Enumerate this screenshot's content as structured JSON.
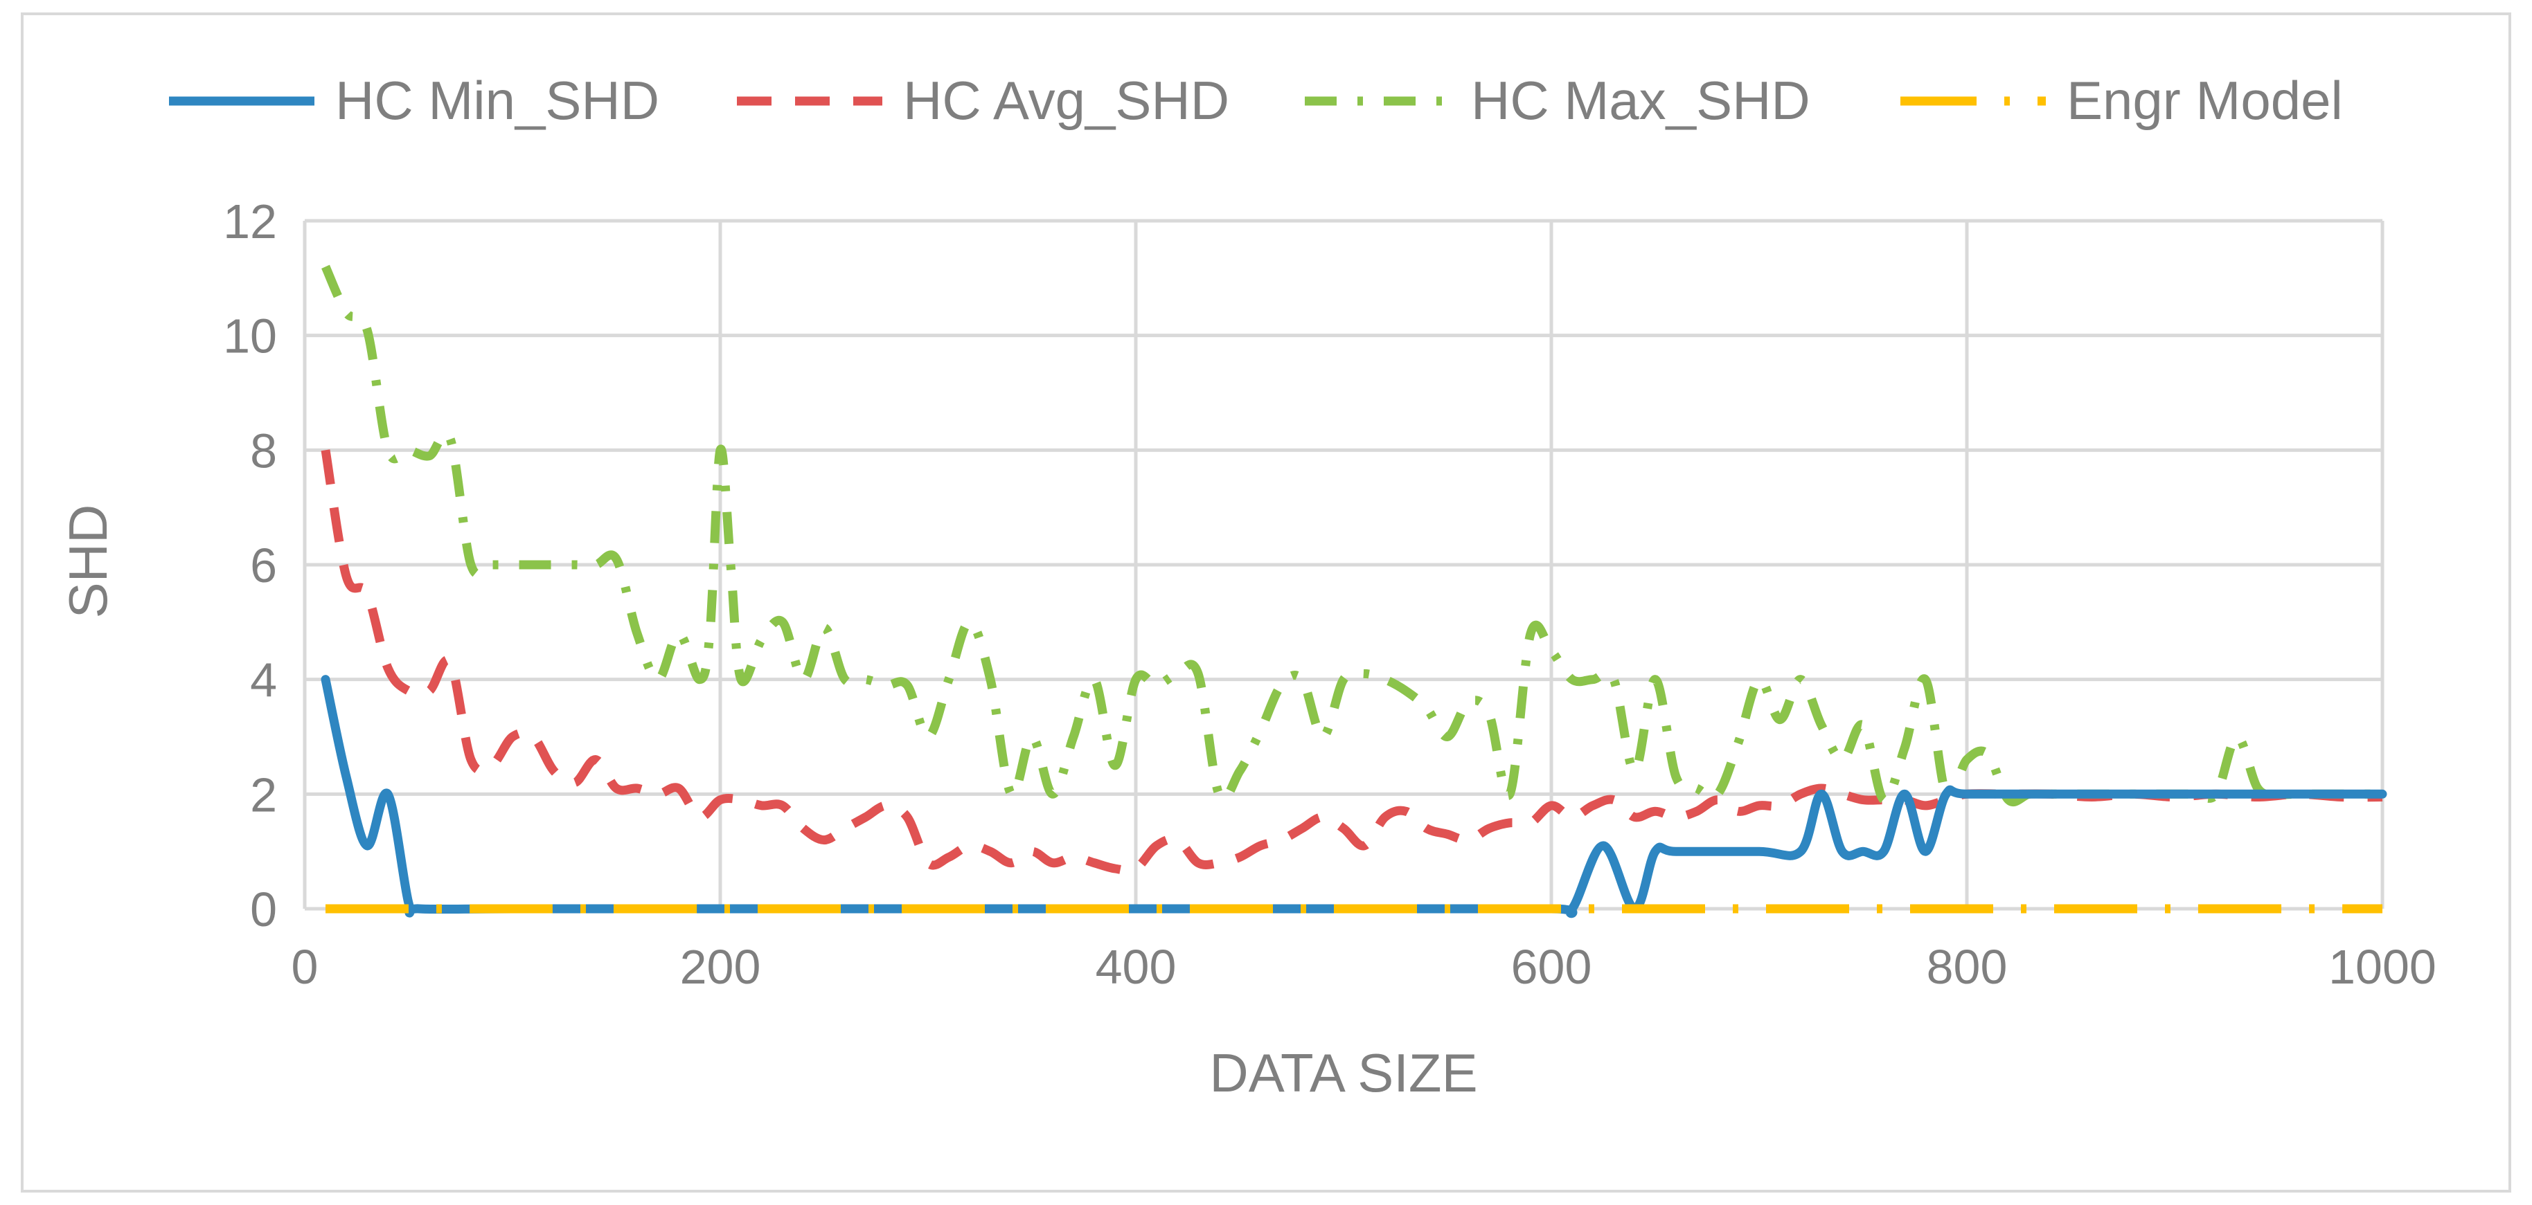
{
  "chart_data": {
    "type": "line",
    "title": "",
    "xlabel": "DATA SIZE",
    "ylabel": "SHD",
    "xlim": [
      0,
      1000
    ],
    "ylim": [
      0,
      12
    ],
    "xticks": [
      0,
      200,
      400,
      600,
      800,
      1000
    ],
    "yticks": [
      0,
      2,
      4,
      6,
      8,
      10,
      12
    ],
    "grid": true,
    "legend_position": "top",
    "series": [
      {
        "name": "HC Min_SHD",
        "color": "#2e86c1",
        "style": "solid",
        "points": [
          [
            10,
            4
          ],
          [
            20,
            2.3
          ],
          [
            30,
            1.1
          ],
          [
            40,
            2
          ],
          [
            50,
            0.1
          ],
          [
            55,
            0
          ],
          [
            100,
            0
          ],
          [
            200,
            0
          ],
          [
            300,
            0
          ],
          [
            400,
            0
          ],
          [
            500,
            0
          ],
          [
            600,
            0
          ],
          [
            610,
            0
          ],
          [
            625,
            1.1
          ],
          [
            640,
            0
          ],
          [
            650,
            1
          ],
          [
            660,
            1
          ],
          [
            700,
            1
          ],
          [
            720,
            1
          ],
          [
            730,
            2
          ],
          [
            740,
            1
          ],
          [
            750,
            1
          ],
          [
            760,
            1
          ],
          [
            770,
            2
          ],
          [
            780,
            1
          ],
          [
            790,
            2
          ],
          [
            800,
            2
          ],
          [
            850,
            2
          ],
          [
            900,
            2
          ],
          [
            950,
            2
          ],
          [
            1000,
            2
          ]
        ]
      },
      {
        "name": "HC Avg_SHD",
        "color": "#e05252",
        "style": "dashed",
        "points": [
          [
            10,
            8
          ],
          [
            20,
            5.8
          ],
          [
            30,
            5.5
          ],
          [
            40,
            4.2
          ],
          [
            50,
            3.8
          ],
          [
            60,
            3.8
          ],
          [
            70,
            4.3
          ],
          [
            80,
            2.6
          ],
          [
            90,
            2.5
          ],
          [
            100,
            3
          ],
          [
            110,
            3
          ],
          [
            120,
            2.4
          ],
          [
            130,
            2.2
          ],
          [
            140,
            2.6
          ],
          [
            150,
            2.1
          ],
          [
            160,
            2.1
          ],
          [
            170,
            2
          ],
          [
            180,
            2.1
          ],
          [
            190,
            1.6
          ],
          [
            200,
            1.9
          ],
          [
            210,
            1.9
          ],
          [
            220,
            1.8
          ],
          [
            230,
            1.8
          ],
          [
            240,
            1.4
          ],
          [
            250,
            1.2
          ],
          [
            260,
            1.4
          ],
          [
            270,
            1.6
          ],
          [
            280,
            1.8
          ],
          [
            290,
            1.6
          ],
          [
            300,
            0.8
          ],
          [
            310,
            0.9
          ],
          [
            320,
            1.1
          ],
          [
            330,
            1
          ],
          [
            340,
            0.8
          ],
          [
            350,
            1
          ],
          [
            360,
            0.8
          ],
          [
            370,
            0.9
          ],
          [
            380,
            0.8
          ],
          [
            390,
            0.7
          ],
          [
            400,
            0.7
          ],
          [
            410,
            1.1
          ],
          [
            420,
            1.2
          ],
          [
            430,
            0.8
          ],
          [
            440,
            0.8
          ],
          [
            450,
            0.9
          ],
          [
            460,
            1.1
          ],
          [
            470,
            1.2
          ],
          [
            480,
            1.4
          ],
          [
            490,
            1.6
          ],
          [
            500,
            1.4
          ],
          [
            510,
            1.1
          ],
          [
            520,
            1.6
          ],
          [
            530,
            1.7
          ],
          [
            540,
            1.4
          ],
          [
            550,
            1.3
          ],
          [
            560,
            1.2
          ],
          [
            570,
            1.4
          ],
          [
            580,
            1.5
          ],
          [
            590,
            1.5
          ],
          [
            600,
            1.8
          ],
          [
            610,
            1.6
          ],
          [
            620,
            1.8
          ],
          [
            630,
            1.9
          ],
          [
            640,
            1.6
          ],
          [
            650,
            1.7
          ],
          [
            660,
            1.6
          ],
          [
            670,
            1.7
          ],
          [
            680,
            1.9
          ],
          [
            690,
            1.7
          ],
          [
            700,
            1.8
          ],
          [
            710,
            1.8
          ],
          [
            720,
            2
          ],
          [
            730,
            2.1
          ],
          [
            740,
            2
          ],
          [
            750,
            1.9
          ],
          [
            760,
            1.9
          ],
          [
            770,
            1.9
          ],
          [
            780,
            1.8
          ],
          [
            790,
            1.9
          ],
          [
            800,
            2
          ],
          [
            820,
            2
          ],
          [
            840,
            2
          ],
          [
            860,
            1.95
          ],
          [
            880,
            2
          ],
          [
            900,
            1.95
          ],
          [
            920,
            2
          ],
          [
            940,
            1.95
          ],
          [
            960,
            2
          ],
          [
            980,
            1.95
          ],
          [
            1000,
            1.95
          ]
        ]
      },
      {
        "name": "HC Max_SHD",
        "color": "#8bc34a",
        "style": "dash-dot",
        "points": [
          [
            10,
            11.2
          ],
          [
            20,
            10.4
          ],
          [
            30,
            10.1
          ],
          [
            40,
            8
          ],
          [
            50,
            8
          ],
          [
            60,
            7.9
          ],
          [
            70,
            8.2
          ],
          [
            80,
            6
          ],
          [
            90,
            6
          ],
          [
            100,
            6
          ],
          [
            110,
            6
          ],
          [
            120,
            6
          ],
          [
            130,
            6
          ],
          [
            140,
            6
          ],
          [
            150,
            6.1
          ],
          [
            160,
            4.8
          ],
          [
            170,
            4
          ],
          [
            180,
            4.8
          ],
          [
            190,
            4
          ],
          [
            195,
            4.8
          ],
          [
            200,
            8
          ],
          [
            205,
            6
          ],
          [
            210,
            4
          ],
          [
            220,
            4.7
          ],
          [
            230,
            5
          ],
          [
            240,
            4
          ],
          [
            250,
            4.9
          ],
          [
            260,
            4
          ],
          [
            270,
            4
          ],
          [
            280,
            3.9
          ],
          [
            290,
            3.9
          ],
          [
            300,
            3
          ],
          [
            310,
            4
          ],
          [
            320,
            5
          ],
          [
            330,
            4
          ],
          [
            340,
            2
          ],
          [
            350,
            3
          ],
          [
            360,
            2
          ],
          [
            370,
            3
          ],
          [
            380,
            4
          ],
          [
            390,
            2.5
          ],
          [
            400,
            4
          ],
          [
            410,
            3.9
          ],
          [
            420,
            4.1
          ],
          [
            430,
            4.1
          ],
          [
            440,
            2
          ],
          [
            450,
            2.4
          ],
          [
            460,
            3.1
          ],
          [
            470,
            3.9
          ],
          [
            480,
            4
          ],
          [
            490,
            3
          ],
          [
            500,
            4
          ],
          [
            510,
            4.1
          ],
          [
            520,
            4
          ],
          [
            530,
            3.8
          ],
          [
            540,
            3.5
          ],
          [
            550,
            3
          ],
          [
            560,
            3.6
          ],
          [
            570,
            3.4
          ],
          [
            580,
            2
          ],
          [
            590,
            4.8
          ],
          [
            600,
            4.5
          ],
          [
            610,
            4
          ],
          [
            620,
            4
          ],
          [
            630,
            4
          ],
          [
            640,
            2.4
          ],
          [
            650,
            4
          ],
          [
            660,
            2.3
          ],
          [
            670,
            2.1
          ],
          [
            680,
            2
          ],
          [
            690,
            2.9
          ],
          [
            700,
            4
          ],
          [
            710,
            3.3
          ],
          [
            720,
            4
          ],
          [
            730,
            3.2
          ],
          [
            740,
            2.6
          ],
          [
            750,
            3.2
          ],
          [
            760,
            1.9
          ],
          [
            770,
            2.8
          ],
          [
            780,
            4
          ],
          [
            790,
            2
          ],
          [
            800,
            2.6
          ],
          [
            810,
            2.7
          ],
          [
            820,
            1.9
          ],
          [
            830,
            2
          ],
          [
            840,
            2
          ],
          [
            850,
            2
          ],
          [
            860,
            2
          ],
          [
            870,
            2
          ],
          [
            880,
            2
          ],
          [
            890,
            2
          ],
          [
            900,
            2
          ],
          [
            910,
            2
          ],
          [
            920,
            2
          ],
          [
            930,
            3
          ],
          [
            940,
            2.1
          ],
          [
            950,
            2
          ],
          [
            960,
            2
          ],
          [
            980,
            2
          ],
          [
            1000,
            2
          ]
        ]
      },
      {
        "name": "Engr Model",
        "color": "#ffc000",
        "style": "long-dash-dot",
        "points": [
          [
            10,
            0
          ],
          [
            100,
            0
          ],
          [
            200,
            0
          ],
          [
            300,
            0
          ],
          [
            400,
            0
          ],
          [
            500,
            0
          ],
          [
            600,
            0
          ],
          [
            700,
            0
          ],
          [
            800,
            0
          ],
          [
            900,
            0
          ],
          [
            1000,
            0
          ]
        ]
      }
    ]
  }
}
